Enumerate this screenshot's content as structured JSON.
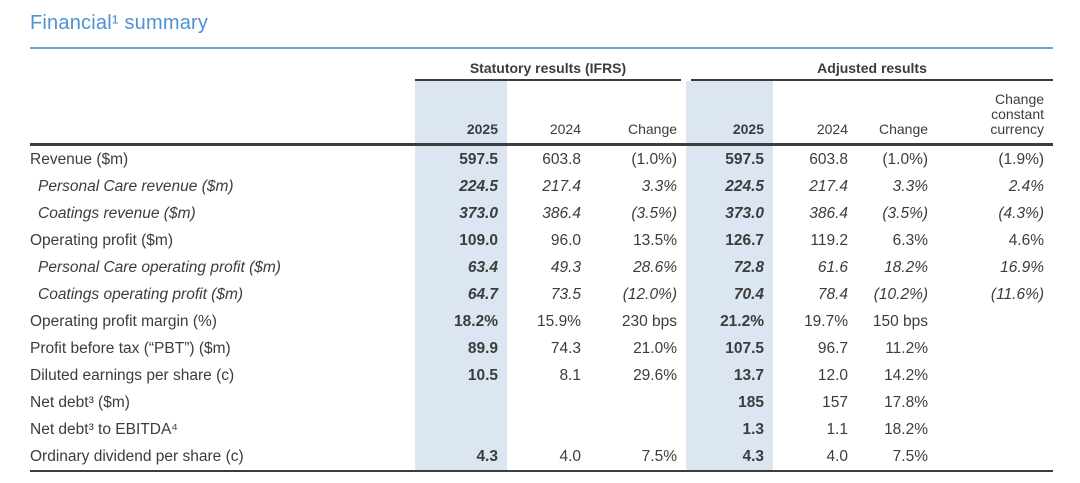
{
  "header": {
    "title": "Financial¹ summary"
  },
  "colors": {
    "accent_blue": "#4E91D6",
    "rule_blue": "#6FA3D6",
    "highlight_blue": "#DCE6F2",
    "line_dark": "#3D3D3D",
    "text": "#3C3C3C"
  },
  "table": {
    "groups": [
      {
        "label": "Statutory results (IFRS)"
      },
      {
        "label": "Adjusted results"
      }
    ],
    "columns": [
      "2025",
      "2024",
      "Change",
      "2025",
      "2024",
      "Change",
      "Change\nconstant\ncurrency"
    ],
    "rows": [
      {
        "label": "Revenue ($m)",
        "italic": false,
        "values": [
          "597.5",
          "603.8",
          "(1.0%)",
          "597.5",
          "603.8",
          "(1.0%)",
          "(1.9%)"
        ]
      },
      {
        "label": "Personal Care revenue ($m)",
        "italic": true,
        "values": [
          "224.5",
          "217.4",
          "3.3%",
          "224.5",
          "217.4",
          "3.3%",
          "2.4%"
        ]
      },
      {
        "label": "Coatings revenue ($m)",
        "italic": true,
        "values": [
          "373.0",
          "386.4",
          "(3.5%)",
          "373.0",
          "386.4",
          "(3.5%)",
          "(4.3%)"
        ]
      },
      {
        "label": "Operating profit ($m)",
        "italic": false,
        "values": [
          "109.0",
          "96.0",
          "13.5%",
          "126.7",
          "119.2",
          "6.3%",
          "4.6%"
        ]
      },
      {
        "label": "Personal Care operating profit ($m)",
        "italic": true,
        "values": [
          "63.4",
          "49.3",
          "28.6%",
          "72.8",
          "61.6",
          "18.2%",
          "16.9%"
        ]
      },
      {
        "label": "Coatings operating profit ($m)",
        "italic": true,
        "values": [
          "64.7",
          "73.5",
          "(12.0%)",
          "70.4",
          "78.4",
          "(10.2%)",
          "(11.6%)"
        ]
      },
      {
        "label": "Operating profit margin (%)",
        "italic": false,
        "values": [
          "18.2%",
          "15.9%",
          "230 bps",
          "21.2%",
          "19.7%",
          "150 bps",
          ""
        ]
      },
      {
        "label": "Profit before tax (“PBT”) ($m)",
        "italic": false,
        "values": [
          "89.9",
          "74.3",
          "21.0%",
          "107.5",
          "96.7",
          "11.2%",
          ""
        ]
      },
      {
        "label": "Diluted earnings per share (c)",
        "italic": false,
        "values": [
          "10.5",
          "8.1",
          "29.6%",
          "13.7",
          "12.0",
          "14.2%",
          ""
        ]
      },
      {
        "label": "Net debt³ ($m)",
        "italic": false,
        "values": [
          "",
          "",
          "",
          "185",
          "157",
          "17.8%",
          ""
        ]
      },
      {
        "label": "Net debt³ to EBITDA⁴",
        "italic": false,
        "values": [
          "",
          "",
          "",
          "1.3",
          "1.1",
          "18.2%",
          ""
        ]
      },
      {
        "label": "Ordinary dividend per share (c)",
        "italic": false,
        "values": [
          "4.3",
          "4.0",
          "7.5%",
          "4.3",
          "4.0",
          "7.5%",
          ""
        ]
      }
    ]
  }
}
